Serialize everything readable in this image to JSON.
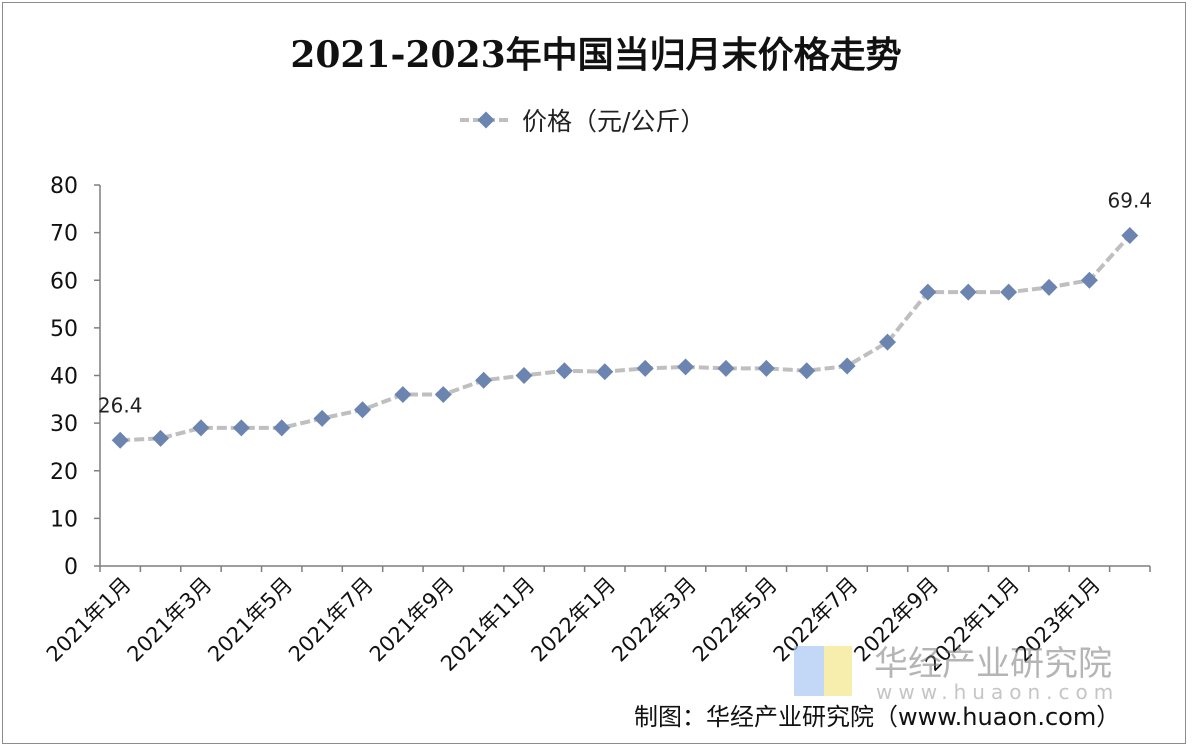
{
  "chart_data": {
    "type": "line",
    "title": "2021-2023年中国当归月末价格走势",
    "series": [
      {
        "name": "价格（元/公斤）",
        "color": "#6b84b0",
        "line_color": "#bfbfbf",
        "values": [
          26.4,
          26.8,
          29.0,
          29.0,
          29.0,
          31.0,
          32.8,
          36.0,
          36.0,
          39.0,
          40.0,
          41.0,
          40.8,
          41.5,
          41.8,
          41.5,
          41.5,
          41.0,
          42.0,
          47.0,
          57.5,
          57.5,
          57.5,
          58.5,
          60.0,
          69.4
        ]
      }
    ],
    "x_tick_labels": [
      "2021年1月",
      "2021年3月",
      "2021年5月",
      "2021年7月",
      "2021年9月",
      "2021年11月",
      "2022年1月",
      "2022年3月",
      "2022年5月",
      "2022年7月",
      "2022年9月",
      "2022年11月",
      "2023年1月"
    ],
    "y_ticks": [
      "0",
      "10",
      "20",
      "30",
      "40",
      "50",
      "60",
      "70",
      "80"
    ],
    "ylim": [
      0,
      80
    ],
    "grid": false,
    "legend_position": "top",
    "data_labels": [
      {
        "index": 0,
        "text": "26.4"
      },
      {
        "index": 25,
        "text": "69.4"
      }
    ]
  },
  "footer": {
    "credit": "制图：华经产业研究院（www.huaon.com）"
  },
  "watermark": {
    "text": "华经产业研究院",
    "url": "www.huaon.com"
  }
}
